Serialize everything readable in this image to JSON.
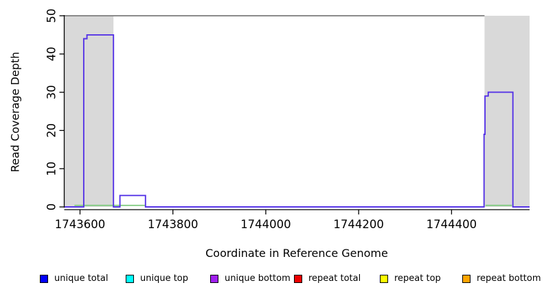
{
  "chart_data": {
    "type": "line",
    "title": "",
    "xlabel": "Coordinate in Reference Genome",
    "ylabel": "Read Coverage Depth",
    "xlim": [
      1743566,
      1744568
    ],
    "ylim": [
      0,
      50
    ],
    "xticks": [
      "1743600",
      "1743800",
      "1744000",
      "1744200",
      "1744400"
    ],
    "xtick_values": [
      1743600,
      1743800,
      1744000,
      1744200,
      1744400
    ],
    "yticks": [
      "0",
      "10",
      "20",
      "30",
      "40",
      "50"
    ],
    "ytick_values": [
      0,
      10,
      20,
      30,
      40,
      50
    ],
    "grid": false,
    "repeat_region_fill": "#d9d9d9",
    "repeat_regions_x": [
      [
        1743566,
        1743672
      ],
      [
        1744471,
        1744568
      ]
    ],
    "clipped_top_line": {
      "y": 50,
      "x_start": 1743566,
      "x_end": 1744471,
      "color": "#8a8a8a"
    },
    "series": [
      {
        "name": "unique coverage step line",
        "render": "step",
        "color": "#5533e6",
        "points": [
          [
            1743566,
            0
          ],
          [
            1743608,
            0
          ],
          [
            1743608,
            44
          ],
          [
            1743615,
            44
          ],
          [
            1743615,
            45
          ],
          [
            1743672,
            45
          ],
          [
            1743672,
            0
          ],
          [
            1743686,
            0
          ],
          [
            1743686,
            3
          ],
          [
            1743741,
            3
          ],
          [
            1743741,
            0
          ],
          [
            1744470,
            0
          ],
          [
            1744470,
            19
          ],
          [
            1744472,
            19
          ],
          [
            1744472,
            29
          ],
          [
            1744479,
            29
          ],
          [
            1744479,
            30
          ],
          [
            1744532,
            30
          ],
          [
            1744532,
            0
          ],
          [
            1744568,
            0
          ]
        ]
      },
      {
        "name": "near-zero coverage segments",
        "render": "segments",
        "color": "#7bc97b",
        "y": 0.4,
        "segments": [
          [
            1743588,
            1743742
          ],
          [
            1744473,
            1744530
          ]
        ]
      }
    ],
    "legend_position": "bottom",
    "legend": [
      {
        "label": "unique total",
        "color": "#0000ff"
      },
      {
        "label": "unique top",
        "color": "#00ffff"
      },
      {
        "label": "unique bottom",
        "color": "#a020f0"
      },
      {
        "label": "repeat total",
        "color": "#ee0000"
      },
      {
        "label": "repeat top",
        "color": "#ffff00"
      },
      {
        "label": "repeat bottom",
        "color": "#ffa500"
      }
    ]
  }
}
